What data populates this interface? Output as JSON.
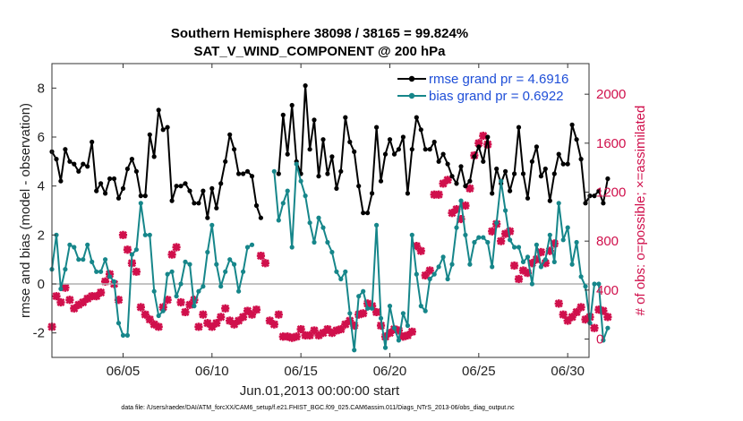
{
  "chart_data": {
    "type": "line",
    "title": "Southern Hemisphere 38098 / 38165 = 99.824%",
    "subtitle": "SAT_V_WIND_COMPONENT @ 200 hPa",
    "xlabel": "Jun.01,2013 00:00:00 start",
    "ylabel": "rmse and bias (model - observation)",
    "y2label": "# of obs: o=possible; ×=assimilated",
    "footer": "data file: /Users/raeder/DAI/ATM_forcXX/CAM6_setup/f.e21.FHIST_BGC.f09_025.CAM6assim.011/Diags_NTrS_2013-06/obs_diag_output.nc",
    "xlim": [
      1,
      31.2
    ],
    "ylim": [
      -3,
      9
    ],
    "y2lim": [
      -150,
      2250
    ],
    "x_ticks": [
      5,
      10,
      15,
      20,
      25,
      30
    ],
    "x_tick_labels": [
      "06/05",
      "06/10",
      "06/15",
      "06/20",
      "06/25",
      "06/30"
    ],
    "y_ticks": [
      -2,
      0,
      2,
      4,
      6,
      8
    ],
    "y2_ticks": [
      0,
      400,
      800,
      1200,
      1600,
      2000
    ],
    "legend_position": "top-right",
    "grid": false,
    "series": [
      {
        "name": "rmse grand pr = 4.6916",
        "color": "#000000",
        "axis": "left",
        "x_start": 1.0,
        "x_step": 0.25,
        "values": [
          5.4,
          5.1,
          4.2,
          5.5,
          5.0,
          4.9,
          4.6,
          4.9,
          4.8,
          5.8,
          3.8,
          4.1,
          3.7,
          4.3,
          4.3,
          3.5,
          3.9,
          4.7,
          5.1,
          4.6,
          3.6,
          3.6,
          6.1,
          5.2,
          7.1,
          6.3,
          6.4,
          3.4,
          4.0,
          4.0,
          4.1,
          3.8,
          3.3,
          3.3,
          3.8,
          2.7,
          3.9,
          3.1,
          4.1,
          5.0,
          6.1,
          5.5,
          4.5,
          4.5,
          4.6,
          4.4,
          3.2,
          2.7,
          null,
          null,
          null,
          4.5,
          6.9,
          5.3,
          7.3,
          5.0,
          4.5,
          8.1,
          5.5,
          6.7,
          4.4,
          5.9,
          4.5,
          5.2,
          3.9,
          4.6,
          6.8,
          5.8,
          5.4,
          4.0,
          2.9,
          2.9,
          3.7,
          6.4,
          4.2,
          5.3,
          5.9,
          5.3,
          5.5,
          6.0,
          3.7,
          5.5,
          6.8,
          6.3,
          5.5,
          5.5,
          5.8,
          5.0,
          5.3,
          4.9,
          4.4,
          4.1,
          4.8,
          4.0,
          4.2,
          5.2,
          5.6,
          5.0,
          6.0,
          3.7,
          4.7,
          4.1,
          4.6,
          3.8,
          4.5,
          6.4,
          4.5,
          3.5,
          5.0,
          5.6,
          4.4,
          4.7,
          3.4,
          4.5,
          5.3,
          4.9,
          4.9,
          6.5,
          5.9,
          5.1,
          3.3,
          3.6,
          3.6,
          3.8,
          3.3,
          4.3
        ]
      },
      {
        "name": "bias grand pr = 0.6922",
        "color": "#16868a",
        "axis": "left",
        "x_start": 1.0,
        "x_step": 0.25,
        "values": [
          0.6,
          2.0,
          -0.2,
          0.6,
          1.6,
          1.5,
          1.0,
          1.0,
          1.6,
          0.9,
          0.5,
          0.5,
          1.0,
          0.3,
          0.1,
          -1.6,
          -2.1,
          -2.1,
          1.2,
          1.4,
          3.3,
          2.0,
          2.0,
          -0.3,
          -1.3,
          -1.1,
          0.4,
          0.5,
          -0.5,
          0.0,
          0.9,
          0.8,
          -0.9,
          -0.3,
          -0.1,
          1.3,
          2.4,
          0.8,
          -0.1,
          0.5,
          1.0,
          0.8,
          -0.3,
          0.5,
          1.5,
          1.6,
          null,
          null,
          null,
          null,
          4.6,
          2.6,
          3.3,
          3.8,
          1.5,
          4.9,
          4.2,
          3.6,
          2.5,
          1.7,
          2.7,
          2.3,
          1.7,
          1.3,
          0.5,
          0.2,
          0.5,
          -1.2,
          -2.7,
          -0.5,
          -0.3,
          -1.0,
          -1.0,
          2.4,
          -1.4,
          -2.6,
          -0.9,
          -1.8,
          -2.3,
          -1.2,
          -1.7,
          2.0,
          0.4,
          -0.9,
          -1.1,
          0.2,
          0.4,
          0.7,
          1.1,
          0.2,
          0.8,
          2.3,
          3.4,
          2.0,
          0.8,
          1.7,
          1.9,
          1.9,
          1.7,
          0.7,
          2.5,
          4.2,
          3.0,
          1.8,
          1.5,
          1.5,
          0.9,
          1.1,
          0.0,
          1.6,
          0.7,
          1.0,
          2.0,
          0.9,
          3.3,
          1.8,
          2.3,
          0.8,
          1.7,
          0.3,
          -0.1,
          -1.6,
          0.0,
          0.0,
          -2.3,
          -1.8
        ]
      },
      {
        "name": "# of obs possible",
        "color": "#d0104c",
        "axis": "right",
        "marker": "o",
        "x": [],
        "values": []
      },
      {
        "name": "# of obs assimilated",
        "color": "#d0104c",
        "axis": "right",
        "marker": "x",
        "x_start": 1.0,
        "x_step": 0.25,
        "values": [
          100,
          350,
          300,
          420,
          320,
          250,
          280,
          300,
          330,
          350,
          350,
          380,
          470,
          530,
          450,
          320,
          850,
          730,
          620,
          550,
          260,
          200,
          160,
          120,
          100,
          260,
          320,
          690,
          750,
          300,
          220,
          280,
          320,
          100,
          200,
          130,
          100,
          130,
          180,
          250,
          150,
          120,
          150,
          180,
          230,
          200,
          240,
          680,
          620,
          150,
          120,
          200,
          20,
          20,
          10,
          20,
          80,
          30,
          30,
          70,
          30,
          50,
          80,
          50,
          70,
          80,
          120,
          150,
          110,
          200,
          210,
          290,
          270,
          220,
          110,
          20,
          50,
          80,
          70,
          20,
          30,
          60,
          760,
          720,
          520,
          560,
          1180,
          1180,
          1270,
          1300,
          1030,
          1060,
          980,
          1090,
          1230,
          1500,
          1600,
          1660,
          1590,
          880,
          940,
          800,
          860,
          880,
          600,
          490,
          560,
          540,
          620,
          650,
          710,
          620,
          720,
          780,
          290,
          200,
          150,
          180,
          220,
          260,
          160,
          180,
          90,
          240,
          230,
          180
        ]
      }
    ]
  }
}
